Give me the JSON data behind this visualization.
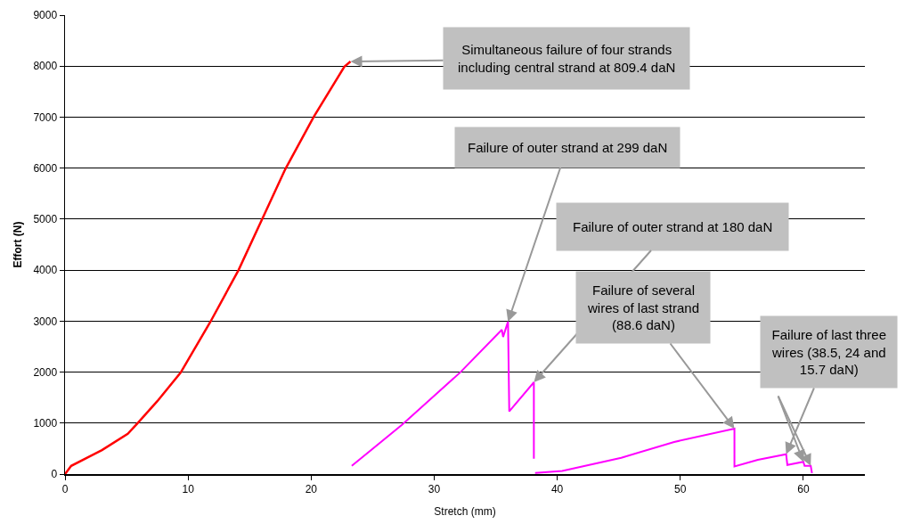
{
  "chart_data": {
    "type": "line",
    "xlabel": "Stretch (mm)",
    "ylabel": "Effort (N)",
    "xlim": [
      0,
      65
    ],
    "xticks": [
      0,
      10,
      20,
      30,
      40,
      50,
      60
    ],
    "ylim": [
      0,
      9000
    ],
    "yticks": [
      0,
      1000,
      2000,
      3000,
      4000,
      5000,
      6000,
      7000,
      8000,
      9000
    ],
    "grid": "y",
    "marker": "none",
    "line_style": "solid",
    "series": [
      {
        "color": "#ff0000",
        "x": [
          0,
          0.5,
          3.0,
          5.1,
          5.9,
          7.5,
          9.4,
          11.8,
          14.1,
          16.0,
          17.9,
          20.2,
          22.7,
          23.2
        ],
        "values": [
          0,
          160,
          470,
          790,
          1000,
          1430,
          1990,
          2980,
          4000,
          4990,
          5980,
          7000,
          7990,
          8090
        ]
      },
      {
        "color": "#ff00ff",
        "x": [
          23.3,
          27.4,
          32.1,
          35.5,
          35.6,
          36.0,
          36.1,
          38.1,
          38.1,
          38.15,
          38.2,
          40.4,
          45.2,
          49.5,
          54.4,
          54.4,
          56.3,
          58.6,
          58.7,
          60.0,
          60.1,
          60.6,
          60.7
        ],
        "values": [
          160,
          970,
          1990,
          2830,
          2690,
          2990,
          1230,
          1800,
          300,
          null,
          20,
          60,
          320,
          630,
          890,
          150,
          280,
          390,
          180,
          240,
          160,
          160,
          20
        ]
      }
    ],
    "annotations": [
      {
        "text": "Simultaneous failure of four strands including central strand at 809.4 daN",
        "x": 23.2,
        "y": 8090
      },
      {
        "text": "Failure of outer strand at 299 daN",
        "x": 36.0,
        "y": 2990
      },
      {
        "text": "Failure of outer strand at 180 daN",
        "x": 38.1,
        "y": 1800
      },
      {
        "text": "Failure of several wires of last strand (88.6 daN)",
        "x": 54.4,
        "y": 890
      },
      {
        "text": "Failure of last three wires (38.5, 24 and 15.7 daN)",
        "x": 58.6,
        "y": 390
      }
    ]
  }
}
